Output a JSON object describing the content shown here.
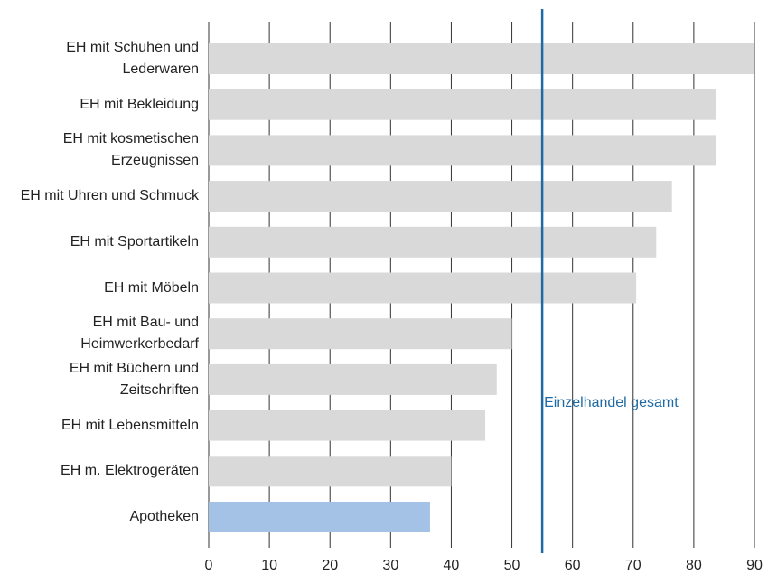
{
  "chart_data": {
    "type": "barh",
    "categories": [
      "EH mit Schuhen und Lederwaren",
      "EH mit Bekleidung",
      "EH mit kosmetischen Erzeugnissen",
      "EH mit Uhren und Schmuck",
      "EH mit Sportartikeln",
      "EH mit Möbeln",
      "EH mit Bau- und Heimwerkerbedarf",
      "EH mit Büchern und Zeitschriften",
      "EH mit Lebensmitteln",
      "EH m. Elektrogeräten",
      "Apotheken"
    ],
    "values": [
      90,
      83.6,
      83.6,
      76.4,
      73.8,
      70.5,
      50,
      47.5,
      45.6,
      40,
      36.5
    ],
    "colors": [
      "#d9d9d9",
      "#d9d9d9",
      "#d9d9d9",
      "#d9d9d9",
      "#d9d9d9",
      "#d9d9d9",
      "#d9d9d9",
      "#d9d9d9",
      "#d9d9d9",
      "#d9d9d9",
      "#a4c2e5"
    ],
    "xlim": [
      0,
      90
    ],
    "xticks": [
      0,
      10,
      20,
      30,
      40,
      50,
      60,
      70,
      80,
      90
    ],
    "grid": true,
    "reference_line": {
      "value": 55,
      "label": "Einzelhandel gesamt",
      "color": "#1f6aa5"
    }
  }
}
